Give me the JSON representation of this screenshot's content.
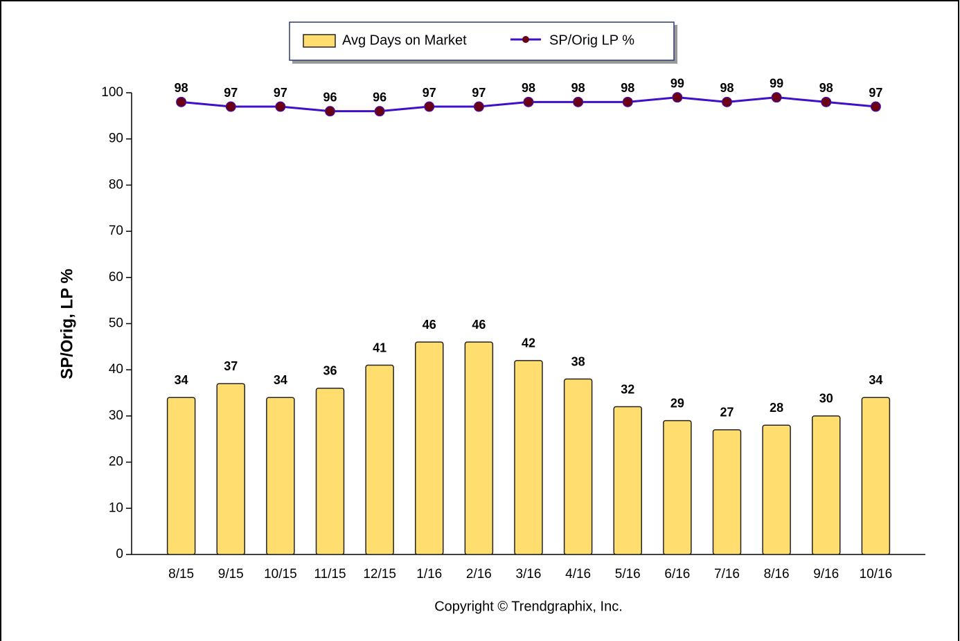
{
  "chart_data": {
    "type": "combo",
    "ylabel": "SP/Orig, LP %",
    "note": "Copyright © Trendgraphix, Inc.",
    "categories": [
      "8/15",
      "9/15",
      "10/15",
      "11/15",
      "12/15",
      "1/16",
      "2/16",
      "3/16",
      "4/16",
      "5/16",
      "6/16",
      "7/16",
      "8/16",
      "9/16",
      "10/16"
    ],
    "series": [
      {
        "name": "Avg Days on Market",
        "type": "bar",
        "color": "#ffdd6f",
        "values": [
          34,
          37,
          34,
          36,
          41,
          46,
          46,
          42,
          38,
          32,
          29,
          27,
          28,
          30,
          34
        ]
      },
      {
        "name": "SP/Orig LP %",
        "type": "line",
        "color": "#3f10c8",
        "marker_color": "#6a0016",
        "values": [
          98,
          97,
          97,
          96,
          96,
          97,
          97,
          98,
          98,
          98,
          99,
          98,
          99,
          98,
          97
        ]
      }
    ],
    "ylim": [
      0,
      100
    ],
    "yticks": [
      0,
      10,
      20,
      30,
      40,
      50,
      60,
      70,
      80,
      90,
      100
    ],
    "legend": "top"
  }
}
